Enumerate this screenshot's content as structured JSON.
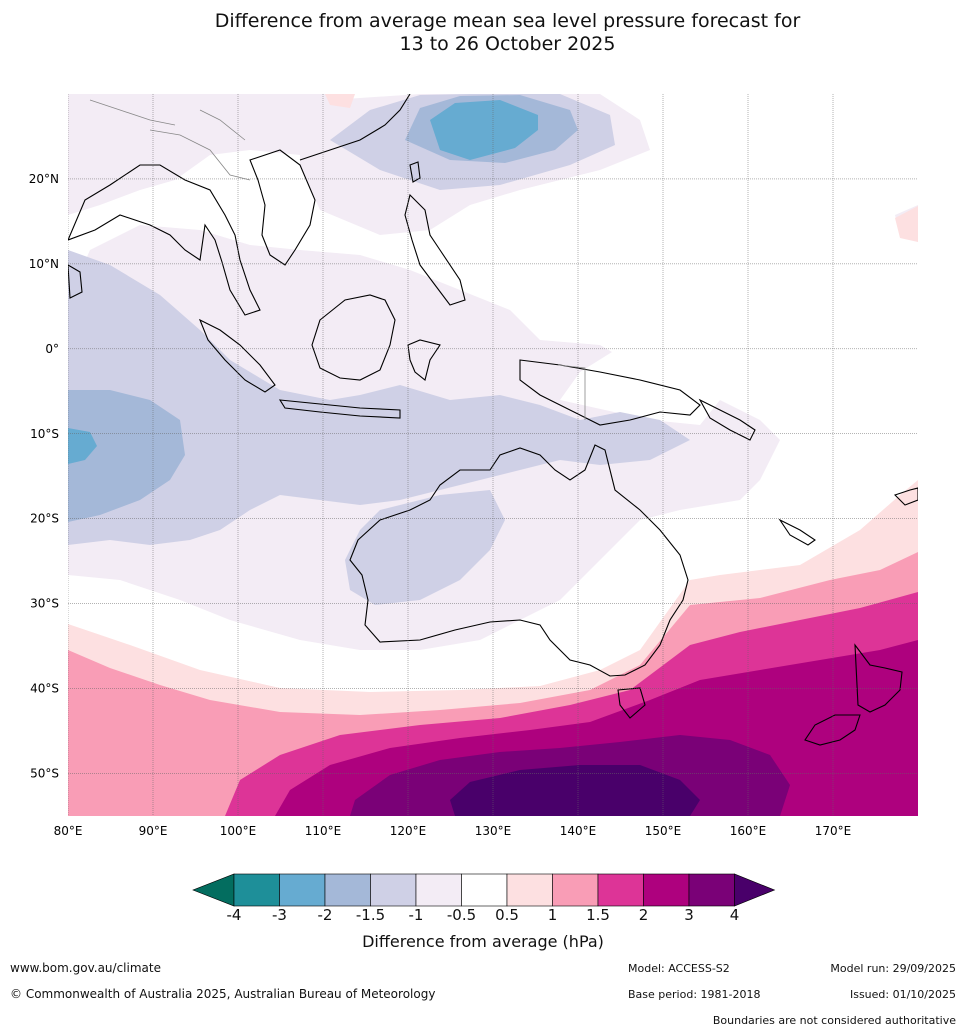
{
  "title_line1": "Difference from average mean sea level pressure forecast for",
  "title_line2": "13 to 26 October 2025",
  "map": {
    "region": "Australia, Indian Ocean and Western Pacific",
    "lat_labels": [
      "20°N",
      "10°N",
      "0°",
      "10°S",
      "20°S",
      "30°S",
      "40°S",
      "50°S"
    ],
    "lon_labels": [
      "80°E",
      "90°E",
      "100°E",
      "110°E",
      "120°E",
      "130°E",
      "140°E",
      "150°E",
      "160°E",
      "170°E"
    ],
    "lat_values": [
      20,
      10,
      0,
      -10,
      -20,
      -30,
      -40,
      -50
    ],
    "lon_values": [
      80,
      90,
      100,
      110,
      120,
      130,
      140,
      150,
      160,
      170
    ],
    "lon_range": [
      80,
      180
    ],
    "lat_range": [
      -55,
      30
    ]
  },
  "colorbar": {
    "title": "Difference from average (hPa)",
    "tick_labels": [
      "-4",
      "-3",
      "-2",
      "-1.5",
      "-1",
      "-0.5",
      "0.5",
      "1",
      "1.5",
      "2",
      "3",
      "4"
    ],
    "colors": {
      "below_min": "#036d5f",
      "m4_m3": "#1e8f99",
      "m3_m2": "#66abd1",
      "m2_m15": "#a4b8d8",
      "m15_m1": "#cfd0e6",
      "m1_m05": "#f3ecf5",
      "m05_05": "#ffffff",
      "p05_1": "#fde0e1",
      "p1_15": "#f99db6",
      "p15_2": "#dd3497",
      "p2_3": "#ae017e",
      "p3_4": "#7a0177",
      "above_max": "#49006a"
    }
  },
  "footer": {
    "website": "www.bom.gov.au/climate",
    "copyright": "© Commonwealth of Australia 2025, Australian Bureau of Meteorology",
    "model": "Model: ACCESS-S2",
    "base_period": "Base period: 1981-2018",
    "model_run": "Model run: 29/09/2025",
    "issued": "Issued: 01/10/2025",
    "disclaimer": "Boundaries are not considered authoritative"
  }
}
